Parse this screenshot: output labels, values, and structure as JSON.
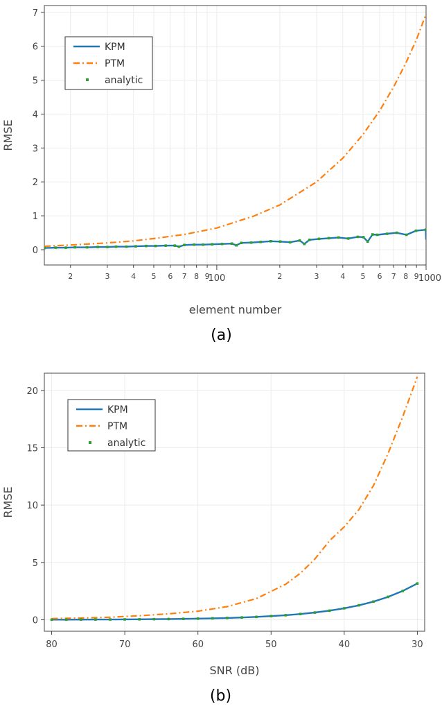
{
  "colors": {
    "kpm": "#1f77b4",
    "ptm": "#ff7f0e",
    "analytic": "#2ca02c"
  },
  "chart_data": [
    {
      "type": "line",
      "caption": "(a)",
      "xlabel": "element number",
      "ylabel": "RMSE",
      "xscale": "log",
      "xlim": [
        15,
        1000
      ],
      "ylim": [
        -0.45,
        7.2
      ],
      "yticks": [
        0,
        1,
        2,
        3,
        4,
        5,
        6,
        7
      ],
      "xticks_major": [
        {
          "v": 100,
          "label": "100"
        },
        {
          "v": 1000,
          "label": "1000"
        }
      ],
      "xticks_minor": [
        {
          "v": 20,
          "label": "2"
        },
        {
          "v": 30,
          "label": "3"
        },
        {
          "v": 40,
          "label": "4"
        },
        {
          "v": 50,
          "label": "5"
        },
        {
          "v": 60,
          "label": "6"
        },
        {
          "v": 70,
          "label": "7"
        },
        {
          "v": 80,
          "label": "8"
        },
        {
          "v": 90,
          "label": "9"
        },
        {
          "v": 200,
          "label": "2"
        },
        {
          "v": 300,
          "label": "3"
        },
        {
          "v": 400,
          "label": "4"
        },
        {
          "v": 500,
          "label": "5"
        },
        {
          "v": 600,
          "label": "6"
        },
        {
          "v": 700,
          "label": "7"
        },
        {
          "v": 800,
          "label": "8"
        },
        {
          "v": 900,
          "label": "9"
        }
      ],
      "grid": true,
      "legend_position": "top-left",
      "series": [
        {
          "name": "KPM",
          "style": "solid",
          "x": [
            15,
            17,
            19,
            21,
            24,
            27,
            30,
            33,
            37,
            41,
            46,
            51,
            57,
            63,
            66,
            70,
            78,
            86,
            95,
            106,
            118,
            124,
            131,
            146,
            162,
            181,
            201,
            224,
            249,
            262,
            277,
            308,
            343,
            382,
            425,
            472,
            502,
            526,
            555,
            585,
            651,
            724,
            806,
            896,
            997,
            1000
          ],
          "y": [
            0.05,
            0.06,
            0.06,
            0.07,
            0.07,
            0.08,
            0.08,
            0.09,
            0.09,
            0.1,
            0.11,
            0.11,
            0.12,
            0.12,
            0.09,
            0.14,
            0.15,
            0.15,
            0.16,
            0.17,
            0.18,
            0.13,
            0.2,
            0.21,
            0.23,
            0.25,
            0.24,
            0.22,
            0.27,
            0.17,
            0.29,
            0.32,
            0.34,
            0.36,
            0.33,
            0.38,
            0.37,
            0.24,
            0.45,
            0.44,
            0.47,
            0.5,
            0.44,
            0.56,
            0.59,
            0.3
          ]
        },
        {
          "name": "PTM",
          "style": "dashdot",
          "x": [
            15,
            20,
            30,
            40,
            50,
            70,
            100,
            150,
            200,
            300,
            400,
            500,
            600,
            700,
            800,
            900,
            1000
          ],
          "y": [
            0.1,
            0.14,
            0.2,
            0.26,
            0.33,
            0.45,
            0.64,
            0.99,
            1.32,
            2.0,
            2.7,
            3.4,
            4.1,
            4.8,
            5.5,
            6.2,
            6.95
          ]
        },
        {
          "name": "analytic",
          "style": "markers",
          "x": [
            15,
            17,
            19,
            21,
            24,
            27,
            30,
            33,
            37,
            41,
            46,
            51,
            57,
            63,
            66,
            70,
            78,
            86,
            95,
            106,
            118,
            124,
            131,
            146,
            162,
            181,
            201,
            224,
            249,
            262,
            277,
            308,
            343,
            382,
            425,
            472,
            502,
            526,
            555,
            585,
            651,
            724,
            806,
            896,
            997
          ],
          "y": [
            0.05,
            0.06,
            0.06,
            0.07,
            0.07,
            0.08,
            0.08,
            0.09,
            0.09,
            0.1,
            0.11,
            0.11,
            0.12,
            0.12,
            0.09,
            0.14,
            0.15,
            0.15,
            0.16,
            0.17,
            0.18,
            0.13,
            0.2,
            0.21,
            0.23,
            0.25,
            0.24,
            0.22,
            0.27,
            0.17,
            0.29,
            0.32,
            0.34,
            0.36,
            0.33,
            0.38,
            0.37,
            0.24,
            0.45,
            0.44,
            0.47,
            0.5,
            0.44,
            0.56,
            0.59
          ]
        }
      ]
    },
    {
      "type": "line",
      "caption": "(b)",
      "xlabel": "SNR (dB)",
      "ylabel": "RMSE",
      "xscale": "linear-reversed",
      "xlim": [
        81,
        29
      ],
      "ylim": [
        -1.0,
        21.5
      ],
      "yticks": [
        0,
        5,
        10,
        15,
        20
      ],
      "xticks": [
        80,
        70,
        60,
        50,
        40,
        30
      ],
      "grid": true,
      "legend_position": "top-left",
      "series": [
        {
          "name": "KPM",
          "style": "solid",
          "x": [
            80,
            78,
            76,
            74,
            72,
            70,
            68,
            66,
            64,
            62,
            60,
            58,
            56,
            54,
            52,
            50,
            48,
            46,
            44,
            42,
            40,
            38,
            36,
            34,
            32,
            30
          ],
          "y": [
            0.01,
            0.013,
            0.016,
            0.02,
            0.025,
            0.032,
            0.04,
            0.05,
            0.063,
            0.079,
            0.1,
            0.126,
            0.158,
            0.2,
            0.251,
            0.316,
            0.398,
            0.501,
            0.631,
            0.794,
            1.0,
            1.259,
            1.585,
            1.995,
            2.512,
            3.162
          ]
        },
        {
          "name": "PTM",
          "style": "dashdot",
          "x": [
            80,
            76,
            72,
            68,
            64,
            60,
            56,
            52,
            48,
            46,
            44,
            42,
            40,
            38,
            36,
            34,
            32,
            30
          ],
          "y": [
            0.1,
            0.15,
            0.22,
            0.35,
            0.52,
            0.75,
            1.15,
            1.85,
            3.1,
            4.05,
            5.3,
            6.9,
            8.1,
            9.6,
            11.7,
            14.5,
            17.7,
            21.2
          ]
        },
        {
          "name": "analytic",
          "style": "markers",
          "x": [
            80,
            78,
            76,
            74,
            72,
            70,
            68,
            66,
            64,
            62,
            60,
            58,
            56,
            54,
            52,
            50,
            48,
            46,
            44,
            42,
            40,
            38,
            36,
            34,
            32,
            30
          ],
          "y": [
            0.01,
            0.013,
            0.016,
            0.02,
            0.025,
            0.032,
            0.04,
            0.05,
            0.063,
            0.079,
            0.1,
            0.126,
            0.158,
            0.2,
            0.251,
            0.316,
            0.398,
            0.501,
            0.631,
            0.794,
            1.0,
            1.259,
            1.585,
            1.995,
            2.512,
            3.162
          ]
        }
      ]
    }
  ]
}
